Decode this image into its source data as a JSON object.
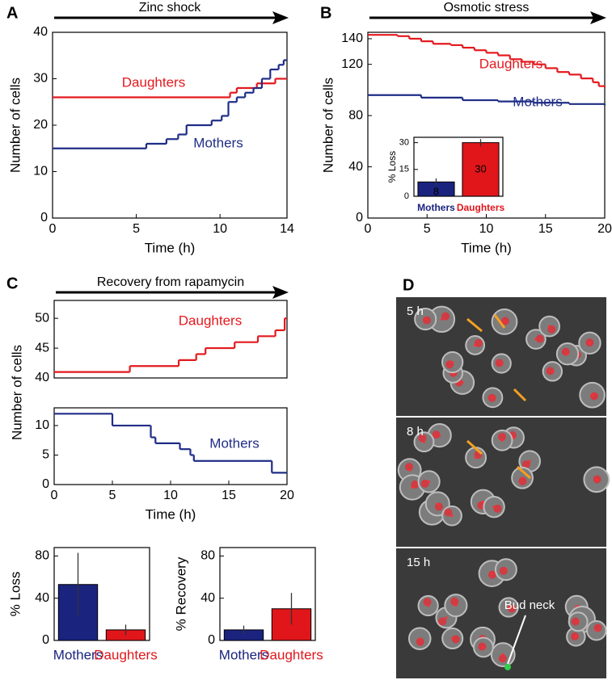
{
  "chart_data": [
    {
      "type": "line",
      "panel": "A",
      "title": "Zinc shock",
      "xlabel": "Time (h)",
      "ylabel": "Number of cells",
      "xlim": [
        0,
        14
      ],
      "xticks": [
        0,
        5,
        10,
        14
      ],
      "ylim": [
        0,
        40
      ],
      "yticks": [
        0,
        10,
        20,
        30,
        40
      ],
      "step": "post",
      "series": [
        {
          "name": "Daughters",
          "color": "#e3191e",
          "x": [
            0,
            10.6,
            11,
            12.2,
            13.3,
            14
          ],
          "values": [
            26,
            27,
            28,
            29,
            30,
            30
          ]
        },
        {
          "name": "Mothers",
          "color": "#1f2d86",
          "x": [
            0,
            5.6,
            6.8,
            7.5,
            8,
            9.5,
            10.1,
            10.5,
            11,
            11.5,
            12,
            12.5,
            13,
            13.5,
            13.8,
            14
          ],
          "values": [
            15,
            16,
            17,
            18,
            20,
            21,
            22,
            25,
            26,
            27,
            28,
            30,
            32,
            33,
            34,
            34
          ]
        }
      ]
    },
    {
      "type": "line",
      "panel": "B",
      "title": "Osmotic stress",
      "xlabel": "Time (h)",
      "ylabel": "Number of cells",
      "xlim": [
        0,
        20
      ],
      "xticks": [
        0,
        5,
        10,
        15,
        20
      ],
      "ylim": [
        0,
        145
      ],
      "yticks": [
        0,
        40,
        80,
        120,
        140
      ],
      "step": "post",
      "series": [
        {
          "name": "Daughters",
          "color": "#e3191e",
          "x": [
            0,
            2.5,
            3.5,
            4.5,
            5.5,
            7,
            8,
            9,
            10,
            11,
            12,
            13,
            14,
            15,
            16,
            17,
            18,
            19,
            19.5,
            20
          ],
          "values": [
            143,
            142,
            140,
            138,
            136,
            135,
            133,
            131,
            129,
            127,
            124,
            122,
            120,
            117,
            114,
            112,
            109,
            106,
            103,
            102
          ]
        },
        {
          "name": "Mothers",
          "color": "#1f2d86",
          "x": [
            0,
            4.5,
            8,
            11,
            14,
            17,
            20
          ],
          "values": [
            96,
            94,
            92,
            91,
            90,
            89,
            88
          ]
        }
      ]
    },
    {
      "type": "bar",
      "ylabel": "% Loss",
      "categories": [
        "Mothers",
        "Daughters"
      ],
      "colors": [
        "#1a237e",
        "#e0161b"
      ],
      "values": [
        8,
        30
      ],
      "errors": [
        2,
        2
      ],
      "ylim": [
        0,
        33
      ],
      "yticks": [
        0,
        15,
        30
      ],
      "data_labels": true
    },
    {
      "type": "line",
      "panel": "C",
      "title": "Recovery from rapamycin",
      "ylabel": "Number of cells",
      "xlim": [
        0,
        20
      ],
      "ylim": [
        40,
        53
      ],
      "yticks": [
        40,
        45,
        50
      ],
      "step": "post",
      "series": [
        {
          "name": "Daughters",
          "color": "#e3191e",
          "x": [
            0,
            6.5,
            10.7,
            12.2,
            13,
            15.5,
            17.5,
            19,
            19.8,
            20
          ],
          "values": [
            41,
            42,
            43,
            44,
            45,
            46,
            47,
            48,
            50,
            50
          ]
        }
      ]
    },
    {
      "type": "line",
      "xlabel": "Time (h)",
      "xlim": [
        0,
        20
      ],
      "xticks": [
        0,
        5,
        10,
        15,
        20
      ],
      "ylim": [
        0,
        13
      ],
      "yticks": [
        0,
        5,
        10
      ],
      "step": "post",
      "series": [
        {
          "name": "Mothers",
          "color": "#1f2d86",
          "x": [
            0,
            5,
            8.3,
            8.7,
            10.8,
            11.7,
            12,
            18.7,
            20
          ],
          "values": [
            12,
            10,
            8,
            7,
            6,
            5,
            4,
            2,
            2
          ]
        }
      ]
    },
    {
      "type": "bar",
      "ylabel": "% Loss",
      "categories": [
        "Mothers",
        "Daughters"
      ],
      "colors": [
        "#1a237e",
        "#e0161b"
      ],
      "values": [
        53,
        10
      ],
      "errors": [
        30,
        5
      ],
      "ylim": [
        0,
        88
      ],
      "yticks": [
        0,
        40,
        80
      ]
    },
    {
      "type": "bar",
      "ylabel": "% Recovery",
      "categories": [
        "Mothers",
        "Daughters"
      ],
      "colors": [
        "#1a237e",
        "#e0161b"
      ],
      "values": [
        10,
        30
      ],
      "errors": [
        4,
        15
      ],
      "ylim": [
        0,
        88
      ],
      "yticks": [
        0,
        40,
        80
      ]
    }
  ],
  "image": {
    "panel": "D",
    "time_labels": [
      "5 h",
      "8 h",
      "15 h"
    ],
    "annotation": "Bud neck"
  }
}
